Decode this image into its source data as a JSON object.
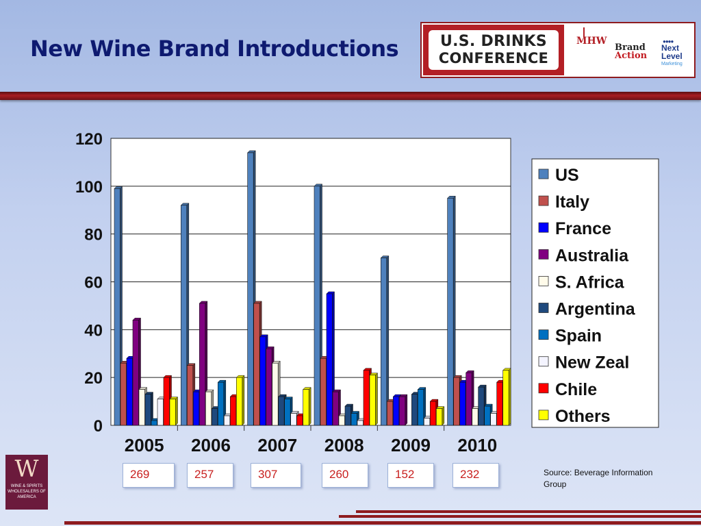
{
  "slide": {
    "title": "New Wine Brand Introductions",
    "source": "Source: Beverage Information Group"
  },
  "logos": {
    "conference_line1": "U.S. DRINKS",
    "conference_line2": "CONFERENCE",
    "sponsor_mhw": "MHW",
    "sponsor_brand": "Brand",
    "sponsor_action": "Action",
    "sponsor_next": "Next Level",
    "sponsor_marketing": "Marketing",
    "wswa_letter": "W",
    "wswa_text": "WINE & SPIRITS WHOLESALERS OF AMERICA"
  },
  "totals": [
    "269",
    "257",
    "307",
    "260",
    "152",
    "232"
  ],
  "chart_data": {
    "type": "bar",
    "categories": [
      "2005",
      "2006",
      "2007",
      "2008",
      "2009",
      "2010"
    ],
    "ylim": [
      0,
      120
    ],
    "yticks": [
      0,
      20,
      40,
      60,
      80,
      100,
      120
    ],
    "grid": true,
    "legend_position": "right",
    "series": [
      {
        "name": "US",
        "color": "#4f81bd",
        "values": [
          99,
          92,
          114,
          100,
          70,
          95
        ]
      },
      {
        "name": "Italy",
        "color": "#c0504d",
        "values": [
          26,
          25,
          51,
          28,
          10,
          20
        ]
      },
      {
        "name": "France",
        "color": "#0000ff",
        "values": [
          28,
          14,
          37,
          55,
          12,
          18
        ]
      },
      {
        "name": "Australia",
        "color": "#800080",
        "values": [
          44,
          51,
          32,
          14,
          12,
          22
        ]
      },
      {
        "name": "S. Africa",
        "color": "#fffbea",
        "values": [
          15,
          14,
          26,
          4,
          0,
          7
        ]
      },
      {
        "name": "Argentina",
        "color": "#1f497d",
        "values": [
          13,
          7,
          12,
          8,
          13,
          16
        ]
      },
      {
        "name": "Spain",
        "color": "#0070c0",
        "values": [
          2,
          18,
          11,
          5,
          15,
          8
        ]
      },
      {
        "name": "New Zeal",
        "color": "#f4f4ff",
        "values": [
          11,
          4,
          5,
          2,
          3,
          5
        ]
      },
      {
        "name": "Chile",
        "color": "#ff0000",
        "values": [
          20,
          12,
          4,
          23,
          10,
          18
        ]
      },
      {
        "name": "Others",
        "color": "#ffff00",
        "values": [
          11,
          20,
          15,
          21,
          7,
          23
        ]
      }
    ]
  }
}
